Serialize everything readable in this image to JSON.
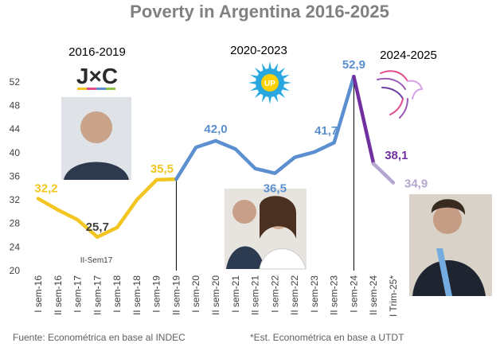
{
  "chart_data": {
    "type": "line",
    "title": "Poverty in Argentina 2016-2025",
    "categories": [
      "I sem-16",
      "II sem-16",
      "I sem-17",
      "II sem-17",
      "I sem-18",
      "II sem-18",
      "I sem-19",
      "II sem-19",
      "I sem-20",
      "II sem-20",
      "I sem-21",
      "II sem-21",
      "I sem-22",
      "II sem-22",
      "I sem-23",
      "II sem-23",
      "I sem-24",
      "II sem-24",
      "I Trim-25*"
    ],
    "values": [
      32.2,
      30.3,
      28.6,
      25.7,
      27.3,
      32.0,
      35.4,
      35.5,
      40.9,
      42.0,
      40.6,
      37.3,
      36.5,
      39.2,
      40.1,
      41.7,
      52.9,
      38.1,
      34.9
    ],
    "ylim": [
      20,
      54
    ],
    "yticks": [
      20,
      24,
      28,
      32,
      36,
      40,
      44,
      48,
      52
    ],
    "grid": false,
    "segments": [
      {
        "label": "2016-2019",
        "logo_text": "J×C",
        "start": 0,
        "end": 7,
        "color": "#F2C521"
      },
      {
        "label": "2020-2023",
        "logo_text": "UP",
        "start": 7,
        "end": 16,
        "color": "#5B8FD0"
      },
      {
        "label": "2024-2025",
        "start": 16,
        "end": 17,
        "color": "#7030A0"
      },
      {
        "start": 17,
        "end": 18,
        "color": "#B5A6CF"
      }
    ],
    "data_labels": [
      {
        "index": 0,
        "text": "32,2",
        "color": "#F2C521"
      },
      {
        "index": 3,
        "text": "25,7",
        "color": "#404040"
      },
      {
        "index": 7,
        "text": "35,5",
        "color": "#F2C521"
      },
      {
        "index": 9,
        "text": "42,0",
        "color": "#5B8FD0"
      },
      {
        "index": 12,
        "text": "36,5",
        "color": "#5B8FD0"
      },
      {
        "index": 15,
        "text": "41,7",
        "color": "#5B8FD0"
      },
      {
        "index": 16,
        "text": "52,9",
        "color": "#5B8FD0"
      },
      {
        "index": 17,
        "text": "38,1",
        "color": "#7030A0"
      },
      {
        "index": 18,
        "text": "34,9",
        "color": "#B5A6CF"
      }
    ],
    "annotation": "II-Sem17",
    "dividers": [
      7,
      16
    ],
    "footer_left": "Fuente: Econométrica en base al INDEC",
    "footer_right": "*Est. Econométrica en base a UTDT"
  }
}
